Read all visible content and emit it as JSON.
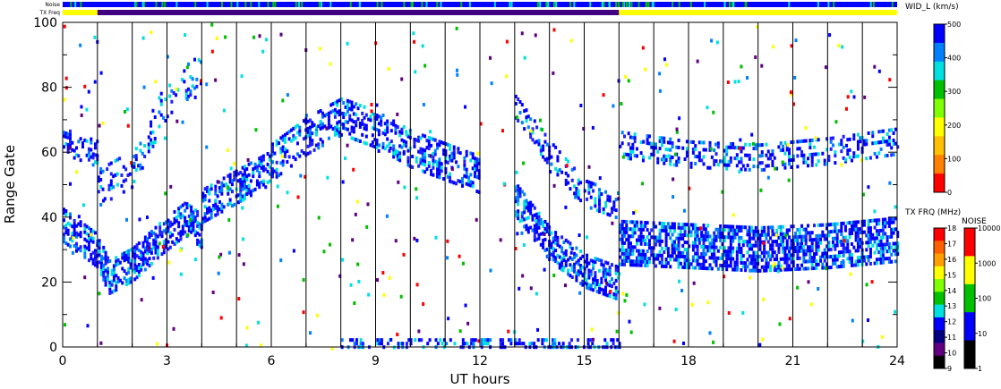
{
  "top_bars": {
    "noise_label": "Noise",
    "txfreq_label": "TX Freq"
  },
  "colorbars": {
    "width": {
      "title": "WID_L (km/s)",
      "ticks": [
        "500",
        "400",
        "300",
        "200",
        "100",
        "0"
      ],
      "colors": [
        "#0000ff",
        "#0080ff",
        "#00e0e0",
        "#00c000",
        "#80ff00",
        "#ffff00",
        "#ffc000",
        "#ff8000",
        "#ff0000"
      ]
    },
    "txfreq": {
      "title": "TX FRQ (MHz)",
      "ticks": [
        "18",
        "17",
        "16",
        "15",
        "14",
        "13",
        "12",
        "11",
        "10",
        "9"
      ],
      "colors": [
        "#ff0000",
        "#ff6000",
        "#ffa000",
        "#ffff00",
        "#80ff00",
        "#00c000",
        "#00e0e0",
        "#0000ff",
        "#000080",
        "#600080",
        "#000000"
      ]
    },
    "noise": {
      "title": "NOISE",
      "ticks": [
        "10000",
        "1000",
        "100",
        "10",
        "1"
      ],
      "colors": [
        "#ff0000",
        "#ffff00",
        "#00c000",
        "#0000ff",
        "#000000"
      ]
    }
  },
  "chart_data": {
    "type": "heatmap",
    "xlabel": "UT hours",
    "ylabel": "Range Gate",
    "xlim": [
      0,
      24
    ],
    "ylim": [
      0,
      100
    ],
    "xticks": [
      0,
      3,
      6,
      9,
      12,
      15,
      18,
      21,
      24
    ],
    "yticks": [
      0,
      20,
      40,
      60,
      80,
      100
    ],
    "vertical_lines_hours": [
      1,
      2,
      3,
      4,
      5,
      6,
      7,
      8,
      9,
      10,
      11,
      12,
      13,
      14,
      15,
      16,
      17,
      18,
      19,
      20,
      21,
      22,
      23
    ],
    "txfreq_bar": [
      {
        "from": 0,
        "to": 1,
        "color": "#ffff00"
      },
      {
        "from": 1,
        "to": 16,
        "color": "#400080"
      },
      {
        "from": 16,
        "to": 24,
        "color": "#ffff00"
      }
    ],
    "noise_bar_color": "#0000ff",
    "scatter_bands": [
      {
        "x": [
          0.0,
          1.0,
          1.3,
          2.0,
          2.8,
          3.5,
          4.0
        ],
        "y": [
          38,
          30,
          22,
          26,
          34,
          40,
          36
        ],
        "width": 10,
        "density": 0.55
      },
      {
        "x": [
          4.0,
          5.0,
          6.0
        ],
        "y": [
          44,
          50,
          56
        ],
        "width": 10,
        "density": 0.45
      },
      {
        "x": [
          0.0,
          1.0
        ],
        "y": [
          64,
          60
        ],
        "width": 8,
        "density": 0.4
      },
      {
        "x": [
          1.0,
          2.0,
          3.0,
          4.0
        ],
        "y": [
          50,
          56,
          78,
          86
        ],
        "width": 12,
        "density": 0.2
      },
      {
        "x": [
          6.0,
          7.0,
          8.0,
          9.0,
          10.0,
          11.0,
          12.0
        ],
        "y": [
          58,
          66,
          72,
          68,
          62,
          58,
          54
        ],
        "width": 12,
        "density": 0.4
      },
      {
        "x": [
          13.0,
          14.0,
          15.0,
          16.0
        ],
        "y": [
          46,
          32,
          24,
          20
        ],
        "width": 10,
        "density": 0.55
      },
      {
        "x": [
          13.0,
          14.0,
          15.0,
          16.0
        ],
        "y": [
          74,
          60,
          48,
          44
        ],
        "width": 8,
        "density": 0.3
      },
      {
        "x": [
          16.0,
          18.0,
          20.0,
          22.0,
          24.0
        ],
        "y": [
          33,
          32,
          31,
          32,
          34
        ],
        "width": 14,
        "density": 0.6
      },
      {
        "x": [
          16.0,
          18.0,
          20.0,
          22.0,
          24.0
        ],
        "y": [
          63,
          60,
          59,
          61,
          64
        ],
        "width": 8,
        "density": 0.3
      },
      {
        "x": [
          8.0,
          10.0,
          12.0,
          14.0,
          16.0
        ],
        "y": [
          2,
          2,
          2,
          2,
          2
        ],
        "width": 3,
        "density": 0.35
      }
    ]
  }
}
